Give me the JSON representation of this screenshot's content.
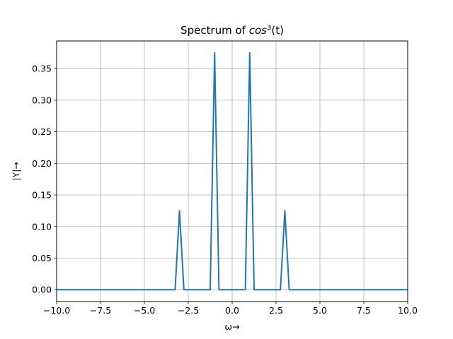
{
  "chart_data": {
    "type": "line",
    "title_text": "Spectrum of ",
    "title_math_base": "cos",
    "title_math_sup": "3",
    "title_math_arg": "(t)",
    "xlabel": "ω→",
    "ylabel": "|Y|→",
    "xlim": [
      -10,
      10
    ],
    "ylim": [
      -0.0188,
      0.3938
    ],
    "xticks": [
      -10,
      -7.5,
      -5,
      -2.5,
      0,
      2.5,
      5,
      7.5,
      10
    ],
    "xtick_labels": [
      "−10.0",
      "−7.5",
      "−5.0",
      "−2.5",
      "0.0",
      "2.5",
      "5.0",
      "7.5",
      "10.0"
    ],
    "yticks": [
      0,
      0.05,
      0.1,
      0.15,
      0.2,
      0.25,
      0.3,
      0.35
    ],
    "ytick_labels": [
      "0.00",
      "0.05",
      "0.10",
      "0.15",
      "0.20",
      "0.25",
      "0.30",
      "0.35"
    ],
    "grid": true,
    "line_color": "#1f77b4",
    "series": [
      {
        "x": [
          -10,
          -3.25,
          -3.0,
          -2.75,
          -1.25,
          -1.0,
          -0.75,
          0.75,
          1.0,
          1.25,
          2.75,
          3.0,
          3.25,
          10
        ],
        "values": [
          0,
          0,
          0.125,
          0,
          0,
          0.375,
          0,
          0,
          0.375,
          0,
          0,
          0.125,
          0,
          0
        ]
      }
    ]
  }
}
